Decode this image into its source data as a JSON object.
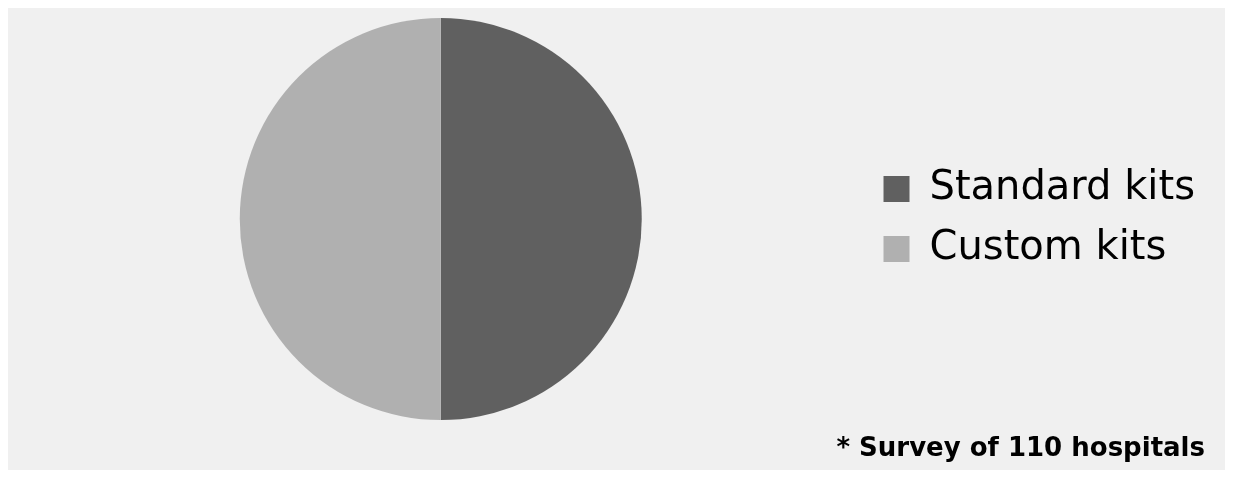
{
  "chart_data": {
    "type": "pie",
    "categories": [
      "Standard kits",
      "Custom kits"
    ],
    "values": [
      50,
      50
    ],
    "colors": [
      "#606060",
      "#b0b0b0"
    ],
    "legend": "right",
    "annotations": [
      "* Survey of 110 hospitals"
    ]
  }
}
